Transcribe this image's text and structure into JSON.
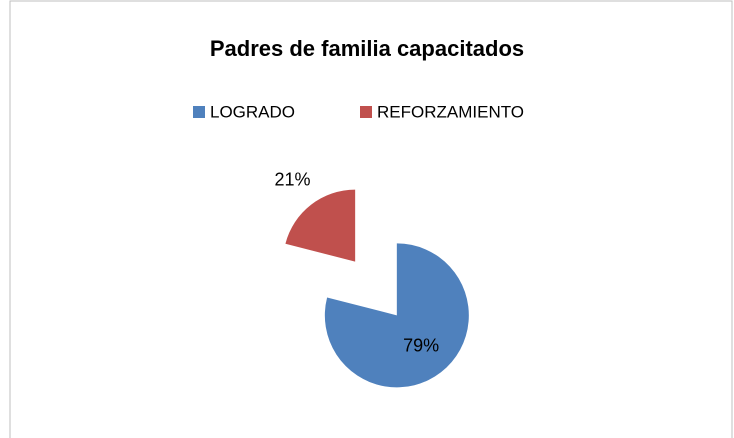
{
  "chart_data": {
    "type": "pie",
    "title": "Padres de familia capacitados",
    "categories": [
      "LOGRADO",
      "REFORZAMIENTO"
    ],
    "values": [
      79,
      21
    ],
    "value_labels": [
      "79%",
      "21%"
    ],
    "colors": [
      "#4f81bd",
      "#c0504d"
    ],
    "legend": "top",
    "exploded": true
  }
}
